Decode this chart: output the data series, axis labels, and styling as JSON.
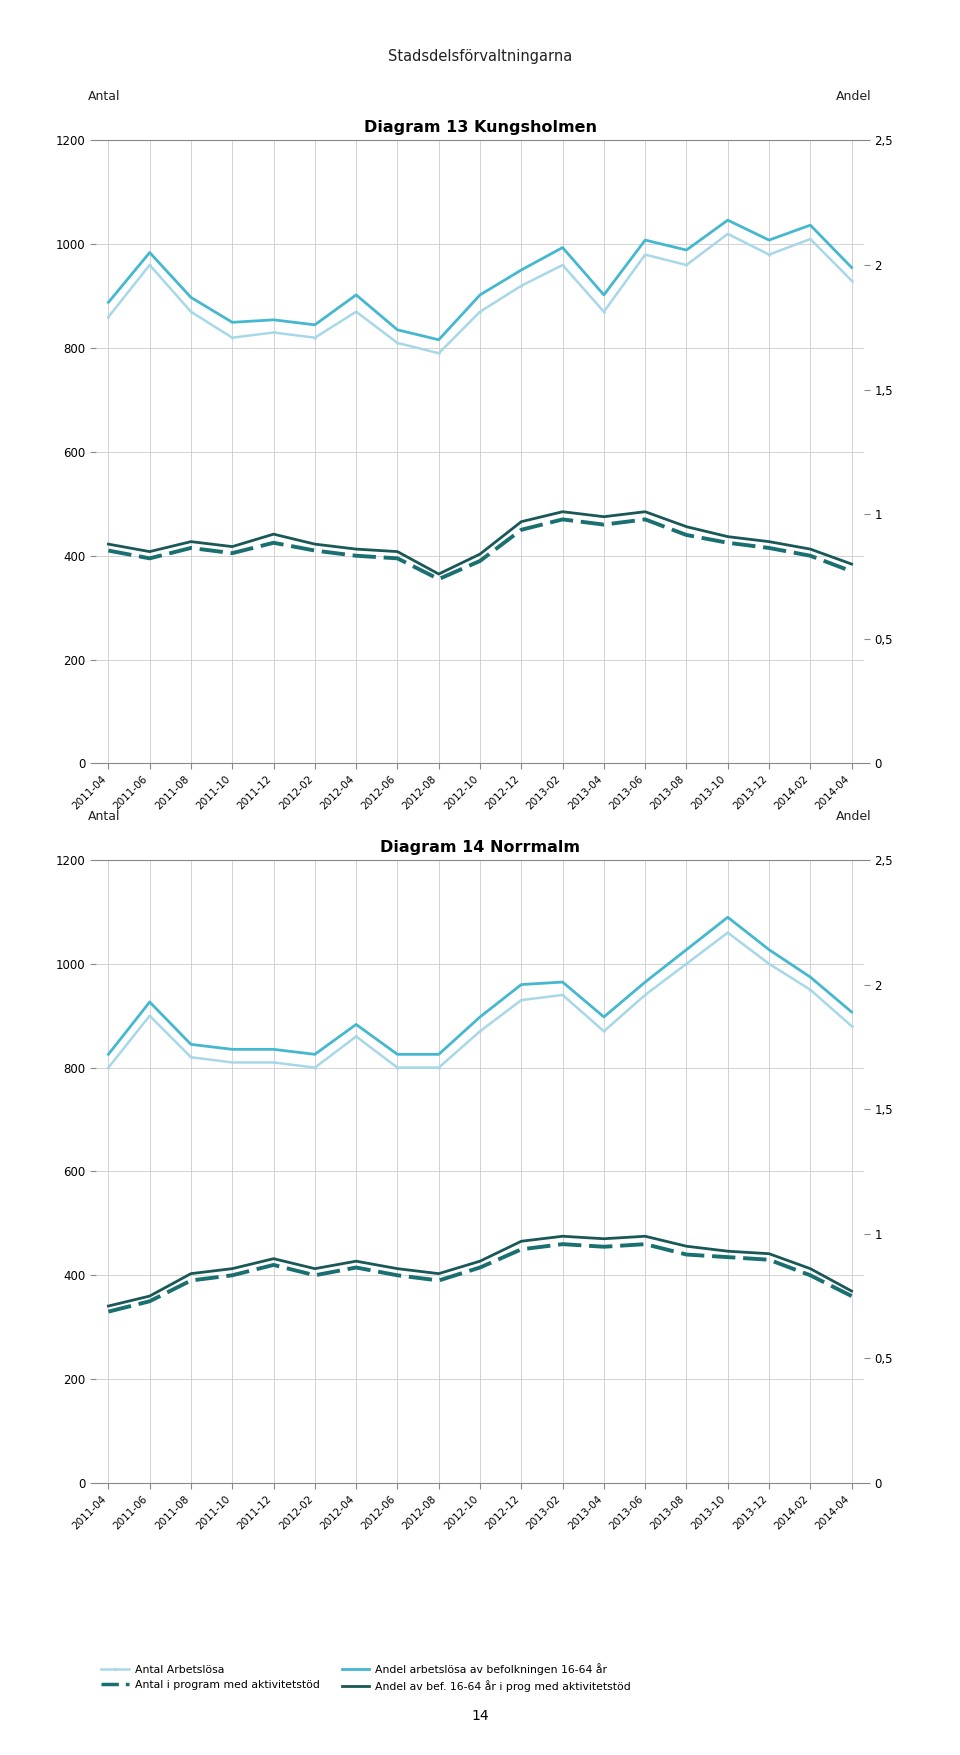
{
  "page_title": "Stadsdelsförvaltningarna",
  "page_number": "14",
  "charts": [
    {
      "title": "Diagram 13 Kungsholmen",
      "ylabel_left": "Antal",
      "ylabel_right": "Andel",
      "ylim_left": [
        0,
        1200
      ],
      "ylim_right": [
        0,
        2.5
      ],
      "yticks_left": [
        0,
        200,
        400,
        600,
        800,
        1000,
        1200
      ],
      "yticks_right": [
        0,
        0.5,
        1,
        1.5,
        2,
        2.5
      ],
      "x_labels": [
        "2011-04",
        "2011-06",
        "2011-08",
        "2011-10",
        "2011-12",
        "2012-02",
        "2012-04",
        "2012-06",
        "2012-08",
        "2012-10",
        "2012-12",
        "2013-02",
        "2013-04",
        "2013-06",
        "2013-08",
        "2013-10",
        "2013-12",
        "2014-02",
        "2014-04"
      ],
      "series": {
        "antal_arbetslosa": [
          860,
          960,
          870,
          820,
          830,
          820,
          870,
          810,
          790,
          870,
          920,
          960,
          870,
          980,
          960,
          1020,
          980,
          1010,
          930
        ],
        "antal_program": [
          410,
          395,
          415,
          405,
          425,
          410,
          400,
          395,
          355,
          390,
          450,
          470,
          460,
          470,
          440,
          425,
          415,
          400,
          370
        ],
        "andel_arbetslosa": [
          1.85,
          2.05,
          1.87,
          1.77,
          1.78,
          1.76,
          1.88,
          1.74,
          1.7,
          1.88,
          1.98,
          2.07,
          1.88,
          2.1,
          2.06,
          2.18,
          2.1,
          2.16,
          1.99
        ],
        "andel_program": [
          0.88,
          0.85,
          0.89,
          0.87,
          0.92,
          0.88,
          0.86,
          0.85,
          0.76,
          0.84,
          0.97,
          1.01,
          0.99,
          1.01,
          0.95,
          0.91,
          0.89,
          0.86,
          0.8
        ]
      }
    },
    {
      "title": "Diagram 14 Norrmalm",
      "ylabel_left": "Antal",
      "ylabel_right": "Andel",
      "ylim_left": [
        0,
        1200
      ],
      "ylim_right": [
        0,
        2.5
      ],
      "yticks_left": [
        0,
        200,
        400,
        600,
        800,
        1000,
        1200
      ],
      "yticks_right": [
        0,
        0.5,
        1,
        1.5,
        2,
        2.5
      ],
      "x_labels": [
        "2011-04",
        "2011-06",
        "2011-08",
        "2011-10",
        "2011-12",
        "2012-02",
        "2012-04",
        "2012-06",
        "2012-08",
        "2012-10",
        "2012-12",
        "2013-02",
        "2013-04",
        "2013-06",
        "2013-08",
        "2013-10",
        "2013-12",
        "2014-02",
        "2014-04"
      ],
      "series": {
        "antal_arbetslosa": [
          800,
          900,
          820,
          810,
          810,
          800,
          860,
          800,
          800,
          870,
          930,
          940,
          870,
          940,
          1000,
          1060,
          1000,
          950,
          880
        ],
        "antal_program": [
          330,
          350,
          390,
          400,
          420,
          400,
          415,
          400,
          390,
          415,
          450,
          460,
          455,
          460,
          440,
          435,
          430,
          400,
          360
        ],
        "andel_arbetslosa": [
          1.72,
          1.93,
          1.76,
          1.74,
          1.74,
          1.72,
          1.84,
          1.72,
          1.72,
          1.87,
          2.0,
          2.01,
          1.87,
          2.01,
          2.14,
          2.27,
          2.14,
          2.03,
          1.89
        ],
        "andel_program": [
          0.71,
          0.75,
          0.84,
          0.86,
          0.9,
          0.86,
          0.89,
          0.86,
          0.84,
          0.89,
          0.97,
          0.99,
          0.98,
          0.99,
          0.95,
          0.93,
          0.92,
          0.86,
          0.77
        ]
      }
    }
  ],
  "color_antal_arbetslosa": "#A8D8E8",
  "color_antal_program_dashed": "#1A7070",
  "color_andel_arbetslosa": "#45B8D0",
  "color_andel_program": "#1A5858",
  "background_color": "#FFFFFF",
  "grid_color": "#CCCCCC",
  "legend_row1": [
    "Antal Arbetslösa",
    "Antal i program med aktivitetstöd"
  ],
  "legend_row2": [
    "Andel arbetslösa av befolkningen 16-64 år",
    "Andel av bef. 16-64 år i prog med aktivitetstöd"
  ]
}
